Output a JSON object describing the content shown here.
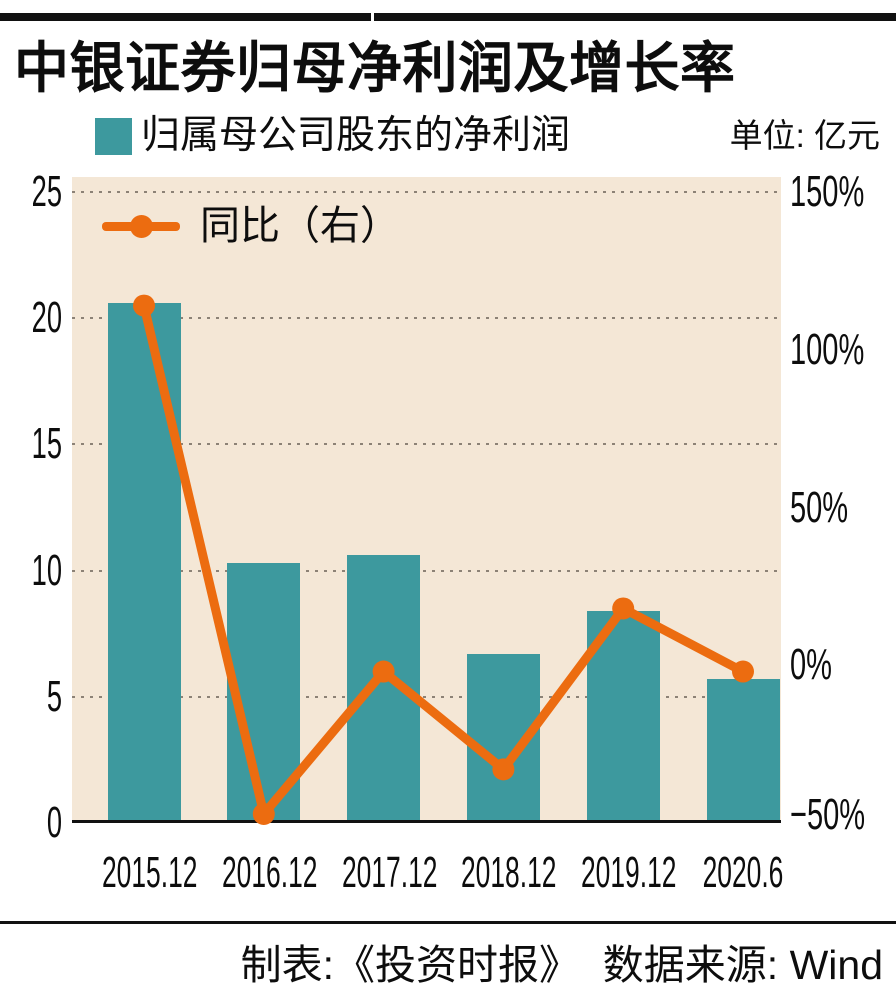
{
  "title": "中银证券归母净利润及增长率",
  "unit_label": "单位: 亿元",
  "footer": "制表:《投资时报》  数据来源: Wind",
  "colors": {
    "bar": "#3d999e",
    "line": "#ec6c10",
    "plot_background": "#f4e7d6",
    "grid_dots": "#8c8276",
    "rule_black": "#111111"
  },
  "chart_data": {
    "type": "bar",
    "subtype": "dual-axis bar + line",
    "title": "中银证券归母净利润及增长率",
    "categories": [
      "2015.12",
      "2016.12",
      "2017.12",
      "2018.12",
      "2019.12",
      "2020.6"
    ],
    "series": [
      {
        "name": "归属母公司股东的净利润",
        "type": "bar",
        "axis": "left",
        "unit": "亿元",
        "color": "#3d999e",
        "values": [
          20.6,
          10.3,
          10.6,
          6.7,
          8.4,
          5.7
        ]
      },
      {
        "name": "同比（右）",
        "type": "line",
        "axis": "right",
        "unit": "%",
        "color": "#ec6c10",
        "values": [
          114,
          -50,
          -2,
          -33,
          18,
          -2
        ]
      }
    ],
    "left_axis": {
      "range": [
        0,
        25
      ],
      "ticks": [
        0,
        5,
        10,
        15,
        20,
        25
      ]
    },
    "right_axis": {
      "range": [
        -50,
        150
      ],
      "ticks": [
        -50,
        0,
        50,
        100,
        150
      ],
      "tick_labels": [
        "−50%",
        "0%",
        "50%",
        "100%",
        "150%"
      ]
    },
    "grid": "horizontal dotted lines at left-axis ticks",
    "legend_position": "bar legend above plot; line legend inside plot top-left",
    "plot_background": "#f4e7d6"
  }
}
